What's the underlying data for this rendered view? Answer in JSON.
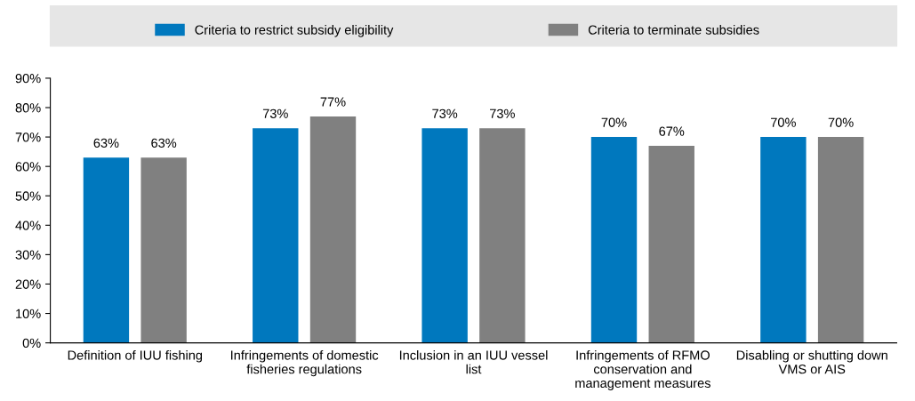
{
  "chart_data": {
    "type": "bar",
    "categories": [
      "Definition of IUU fishing",
      "Infringements of domestic fisheries regulations",
      "Inclusion in an IUU vessel list",
      "Infringements of RFMO conservation and management measures",
      "Disabling or shutting down VMS or AIS"
    ],
    "series": [
      {
        "name": "Criteria to restrict subsidy eligibility",
        "color": "#0078be",
        "values": [
          63,
          73,
          73,
          70,
          70
        ],
        "value_labels": [
          "63%",
          "73%",
          "73%",
          "70%",
          "70%"
        ]
      },
      {
        "name": "Criteria to terminate subsidies",
        "color": "#808080",
        "values": [
          63,
          77,
          73,
          67,
          70
        ],
        "value_labels": [
          "63%",
          "77%",
          "73%",
          "67%",
          "70%"
        ]
      }
    ],
    "ylim": [
      0,
      90
    ],
    "yticks": [
      {
        "value": 0,
        "label": "0%"
      },
      {
        "value": 10,
        "label": "10%"
      },
      {
        "value": 20,
        "label": "20%"
      },
      {
        "value": 30,
        "label": "30%"
      },
      {
        "value": 40,
        "label": "40%"
      },
      {
        "value": 50,
        "label": "50%"
      },
      {
        "value": 60,
        "label": "60%"
      },
      {
        "value": 70,
        "label": "70%"
      },
      {
        "value": 80,
        "label": "80%"
      },
      {
        "value": 90,
        "label": "90%"
      }
    ],
    "grid": false,
    "legend": "top"
  }
}
